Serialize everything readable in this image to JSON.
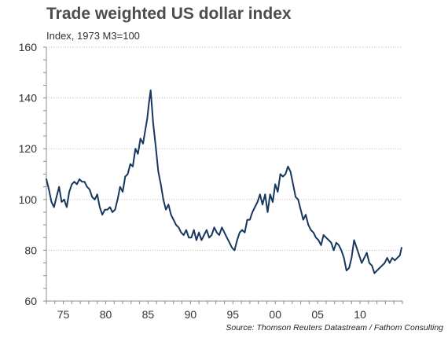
{
  "chart_data": {
    "type": "line",
    "title": "Trade weighted US dollar index",
    "subtitle": "Index, 1973 M3=100",
    "source": "Source: Thomson Reuters Datastream / Fathom Consulting",
    "xlabel": "",
    "ylabel": "",
    "xlim": [
      1973,
      2015
    ],
    "ylim": [
      60,
      160
    ],
    "y_ticks": [
      60,
      80,
      100,
      120,
      140,
      160
    ],
    "x_ticks": [
      {
        "value": 1975,
        "label": "75"
      },
      {
        "value": 1980,
        "label": "80"
      },
      {
        "value": 1985,
        "label": "85"
      },
      {
        "value": 1990,
        "label": "90"
      },
      {
        "value": 1995,
        "label": "95"
      },
      {
        "value": 2000,
        "label": "00"
      },
      {
        "value": 2005,
        "label": "05"
      },
      {
        "value": 2010,
        "label": "10"
      }
    ],
    "grid": "horizontal-dotted",
    "line_color": "#17375e",
    "series": [
      {
        "x": [
          1973.0,
          1973.3,
          1973.6,
          1973.9,
          1974.2,
          1974.5,
          1974.8,
          1975.1,
          1975.4,
          1975.7,
          1976.0,
          1976.3,
          1976.6,
          1976.9,
          1977.2,
          1977.5,
          1977.8,
          1978.1,
          1978.4,
          1978.7,
          1979.0,
          1979.3,
          1979.6,
          1979.9,
          1980.2,
          1980.5,
          1980.8,
          1981.1,
          1981.4,
          1981.7,
          1982.0,
          1982.3,
          1982.6,
          1982.9,
          1983.2,
          1983.5,
          1983.8,
          1984.1,
          1984.4,
          1984.7,
          1984.9,
          1985.1,
          1985.3,
          1985.6,
          1985.9,
          1986.2,
          1986.5,
          1986.8,
          1987.1,
          1987.4,
          1987.7,
          1988.0,
          1988.3,
          1988.6,
          1988.9,
          1989.2,
          1989.5,
          1989.8,
          1990.1,
          1990.4,
          1990.7,
          1991.0,
          1991.3,
          1991.6,
          1991.9,
          1992.2,
          1992.5,
          1992.8,
          1993.1,
          1993.4,
          1993.7,
          1994.0,
          1994.3,
          1994.6,
          1994.9,
          1995.2,
          1995.5,
          1995.8,
          1996.1,
          1996.4,
          1996.7,
          1997.0,
          1997.3,
          1997.6,
          1997.9,
          1998.2,
          1998.5,
          1998.8,
          1999.1,
          1999.4,
          1999.7,
          2000.0,
          2000.3,
          2000.6,
          2000.9,
          2001.2,
          2001.5,
          2001.8,
          2002.1,
          2002.4,
          2002.7,
          2003.0,
          2003.3,
          2003.6,
          2003.9,
          2004.2,
          2004.5,
          2004.8,
          2005.1,
          2005.4,
          2005.7,
          2006.0,
          2006.3,
          2006.6,
          2006.9,
          2007.2,
          2007.5,
          2007.8,
          2008.1,
          2008.4,
          2008.7,
          2009.0,
          2009.3,
          2009.6,
          2009.9,
          2010.2,
          2010.5,
          2010.8,
          2011.1,
          2011.4,
          2011.7,
          2012.0,
          2012.3,
          2012.6,
          2012.9,
          2013.2,
          2013.5,
          2013.8,
          2014.1,
          2014.4,
          2014.7,
          2014.9
        ],
        "values": [
          108,
          104,
          99,
          97,
          101,
          105,
          99,
          100,
          97,
          103,
          106,
          107,
          106,
          108,
          107,
          107,
          105,
          104,
          101,
          100,
          102,
          97,
          94,
          96,
          96,
          97,
          95,
          96,
          100,
          105,
          103,
          109,
          110,
          114,
          113,
          120,
          118,
          124,
          122,
          128,
          132,
          138,
          143,
          130,
          121,
          111,
          106,
          100,
          96,
          98,
          94,
          92,
          90,
          89,
          87,
          86,
          88,
          85,
          85,
          88,
          84,
          87,
          84,
          86,
          88,
          85,
          86,
          89,
          87,
          86,
          89,
          87,
          85,
          83,
          81,
          80,
          84,
          87,
          88,
          87,
          92,
          92,
          95,
          97,
          99,
          102,
          98,
          102,
          95,
          102,
          99,
          106,
          103,
          110,
          109,
          110,
          113,
          111,
          106,
          101,
          100,
          96,
          92,
          94,
          90,
          88,
          87,
          85,
          84,
          82,
          86,
          85,
          84,
          83,
          80,
          83,
          82,
          80,
          77,
          72,
          73,
          77,
          84,
          81,
          78,
          75,
          77,
          79,
          75,
          74,
          71,
          72,
          73,
          74,
          75,
          77,
          75,
          77,
          76,
          77,
          78,
          81
        ]
      }
    ]
  }
}
